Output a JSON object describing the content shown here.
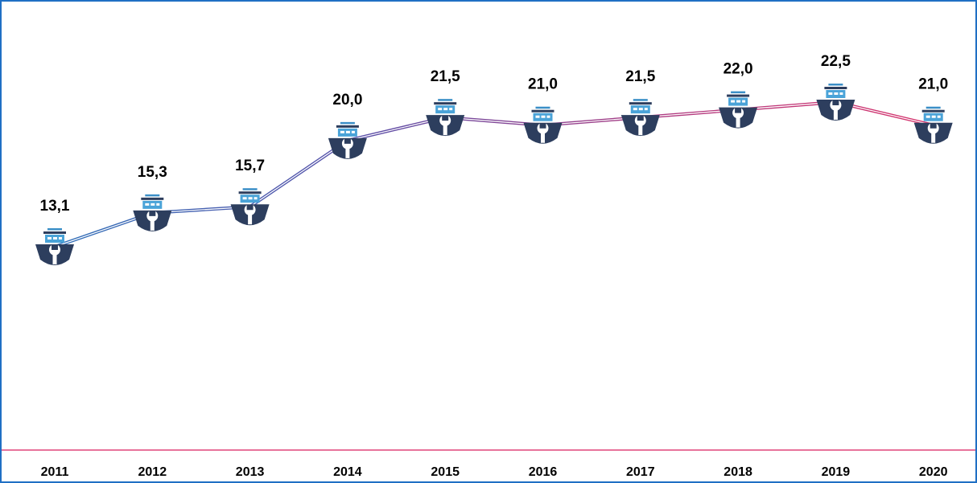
{
  "chart_data": {
    "type": "line",
    "categories": [
      "2011",
      "2012",
      "2013",
      "2014",
      "2015",
      "2016",
      "2017",
      "2018",
      "2019",
      "2020"
    ],
    "values": [
      13.1,
      15.3,
      15.7,
      20.0,
      21.5,
      21.0,
      21.5,
      22.0,
      22.5,
      21.0
    ],
    "value_labels": [
      "13,1",
      "15,3",
      "15,7",
      "20,0",
      "21,5",
      "21,0",
      "21,5",
      "22,0",
      "22,5",
      "21,0"
    ]
  }
}
